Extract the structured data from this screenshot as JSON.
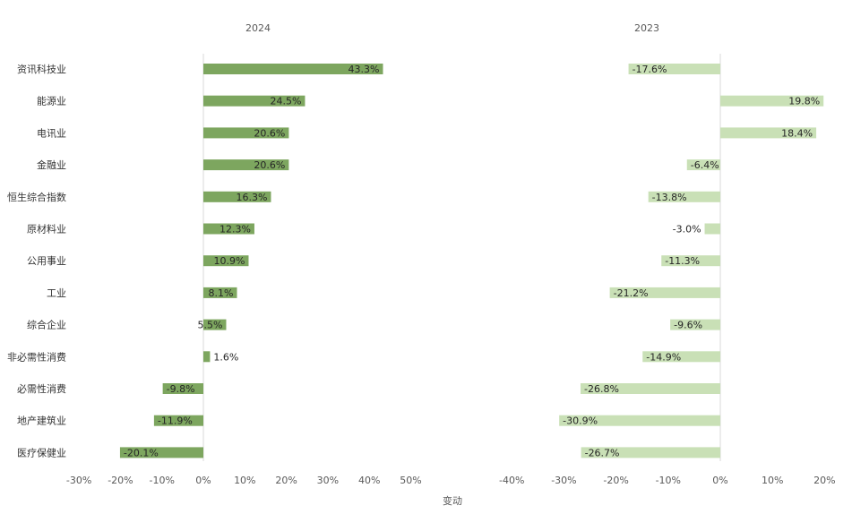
{
  "chart_data": [
    {
      "type": "bar",
      "orientation": "horizontal",
      "title": "2024",
      "categories": [
        "资讯科技业",
        "能源业",
        "电讯业",
        "金融业",
        "恒生综合指数",
        "原材料业",
        "公用事业",
        "工业",
        "综合企业",
        "非必需性消费",
        "必需性消费",
        "地产建筑业",
        "医疗保健业"
      ],
      "values": [
        43.3,
        24.5,
        20.6,
        20.6,
        16.3,
        12.3,
        10.9,
        8.1,
        5.5,
        1.6,
        -9.8,
        -11.9,
        -20.1
      ],
      "value_labels": [
        "43.3%",
        "24.5%",
        "20.6%",
        "20.6%",
        "16.3%",
        "12.3%",
        "10.9%",
        "8.1%",
        "5.5%",
        "1.6%",
        "-9.8%",
        "-11.9%",
        "-20.1%"
      ],
      "xlim": [
        -30,
        50
      ],
      "xticks": [
        "-30%",
        "-20%",
        "-10%",
        "0%",
        "10%",
        "20%",
        "30%",
        "40%",
        "50%"
      ],
      "bar_color": "#7da65f"
    },
    {
      "type": "bar",
      "orientation": "horizontal",
      "title": "2023",
      "categories": [
        "资讯科技业",
        "能源业",
        "电讯业",
        "金融业",
        "恒生综合指数",
        "原材料业",
        "公用事业",
        "工业",
        "综合企业",
        "非必需性消费",
        "必需性消费",
        "地产建筑业",
        "医疗保健业"
      ],
      "values": [
        -17.6,
        19.8,
        18.4,
        -6.4,
        -13.8,
        -3.0,
        -11.3,
        -21.2,
        -9.6,
        -14.9,
        -26.8,
        -30.9,
        -26.7
      ],
      "value_labels": [
        "-17.6%",
        "19.8%",
        "18.4%",
        "-6.4%",
        "-13.8%",
        "-3.0%",
        "-11.3%",
        "-21.2%",
        "-9.6%",
        "-14.9%",
        "-26.8%",
        "-30.9%",
        "-26.7%"
      ],
      "xlim": [
        -40,
        20
      ],
      "xticks": [
        "-40%",
        "-30%",
        "-20%",
        "-10%",
        "0%",
        "10%",
        "20%"
      ],
      "bar_color": "#c9e0b6"
    }
  ],
  "xlabel": "变动"
}
